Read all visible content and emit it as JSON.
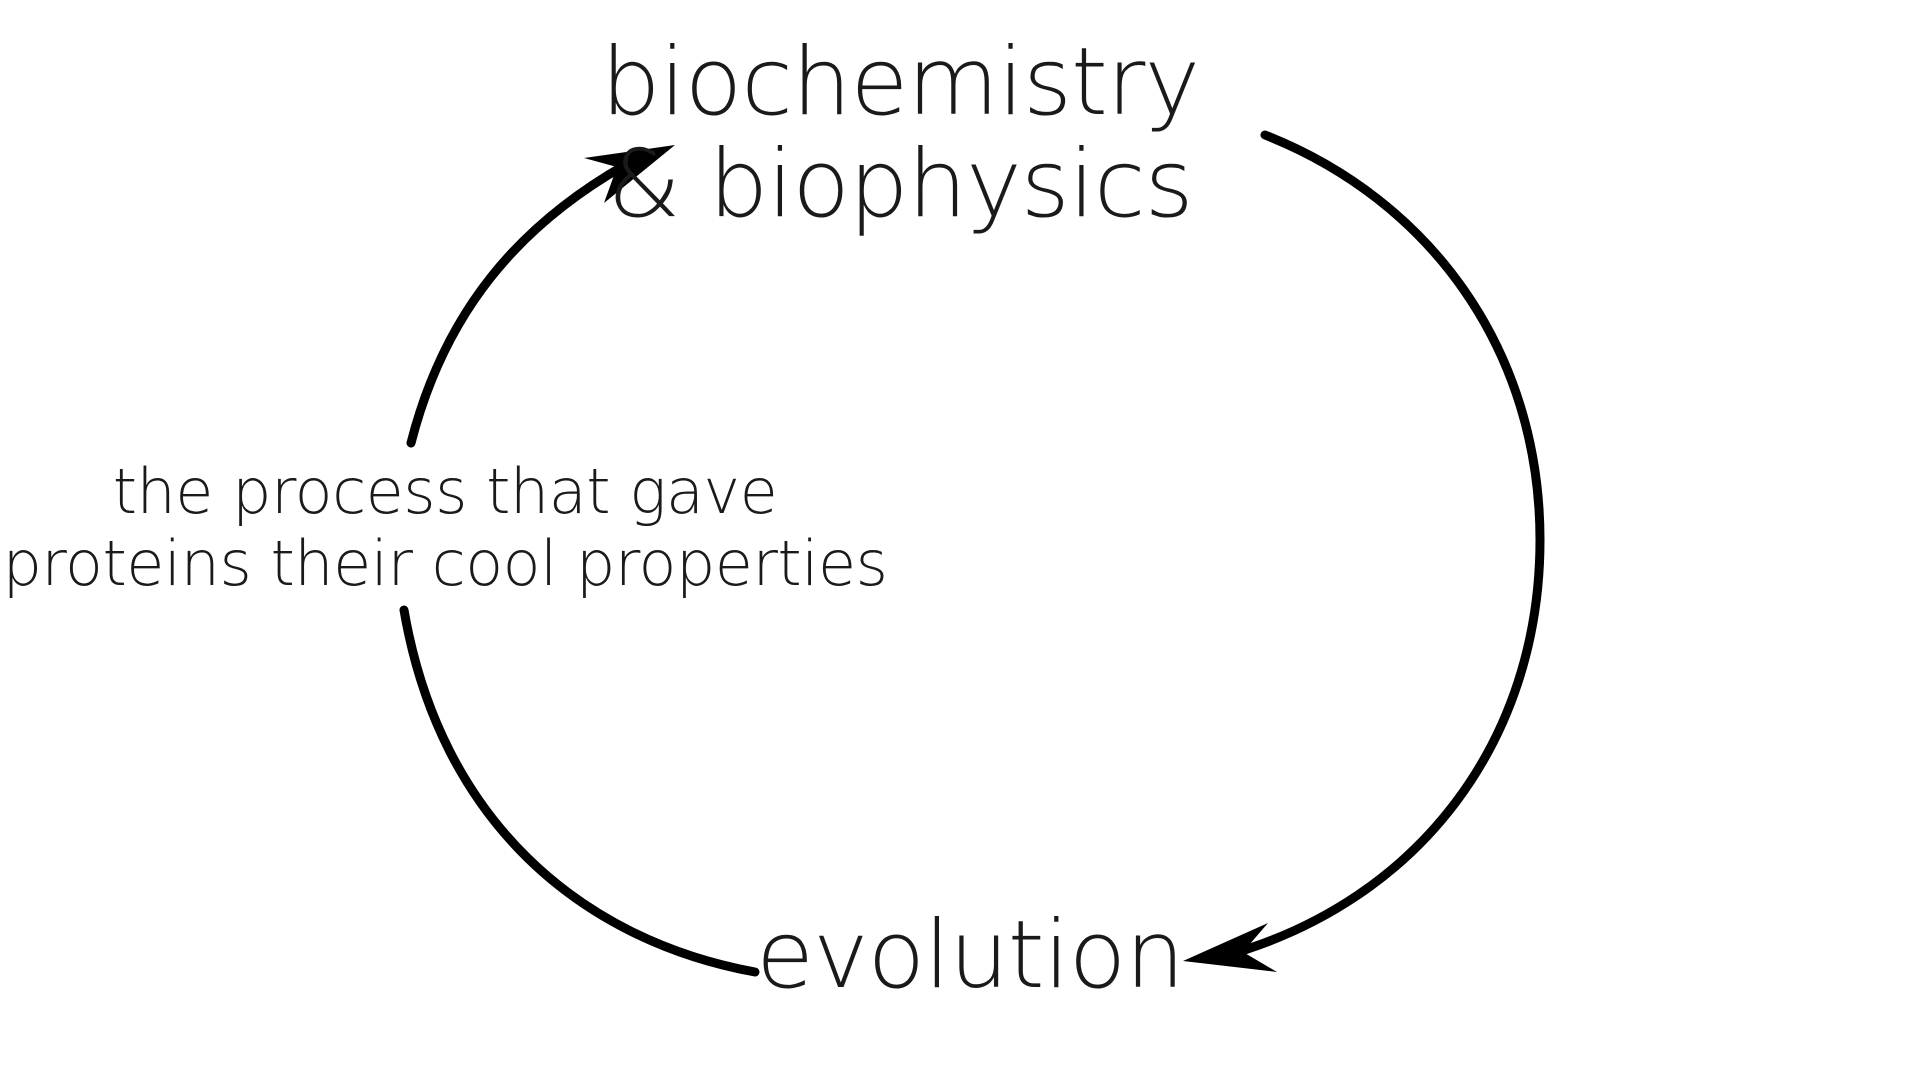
{
  "diagram": {
    "nodes": {
      "top": {
        "line1": "biochemistry",
        "line2": "& biophysics"
      },
      "bottom": {
        "text": "evolution"
      },
      "side": {
        "line1": "the process that gave",
        "line2": "proteins their cool properties"
      }
    },
    "edges": [
      {
        "from": "top",
        "to": "bottom",
        "direction": "clockwise"
      },
      {
        "from": "bottom",
        "to": "top",
        "direction": "clockwise"
      }
    ],
    "colors": {
      "stroke": "#000000",
      "text": "#1a1a1a",
      "background": "#ffffff"
    }
  }
}
